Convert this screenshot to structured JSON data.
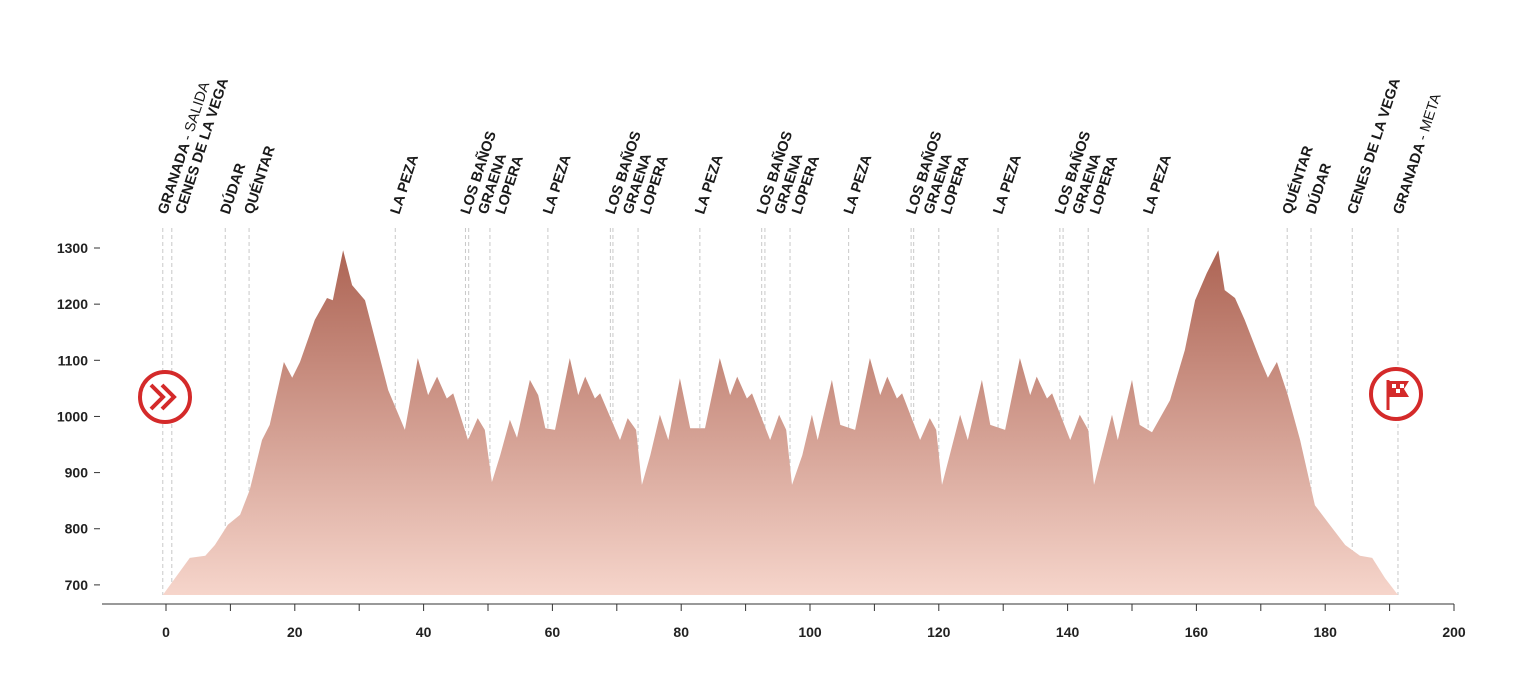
{
  "chart_data": {
    "type": "area",
    "x": [
      -0.5,
      1.4,
      3.7,
      6.1,
      7.6,
      9.6,
      11.5,
      13,
      14.9,
      16.1,
      18.3,
      19.6,
      20.8,
      23.1,
      25,
      25.9,
      27.5,
      28.9,
      30.9,
      34.5,
      37.1,
      39.1,
      40.7,
      42.1,
      43.6,
      44.6,
      46.9,
      48.4,
      49.5,
      50.6,
      51.9,
      53.4,
      54.5,
      56.5,
      57.8,
      58.9,
      60.4,
      62.7,
      64,
      65.1,
      66.6,
      67.4,
      70.5,
      71.7,
      73,
      73.9,
      75.2,
      76.7,
      78,
      79.8,
      81.4,
      83.7,
      86,
      87.6,
      88.7,
      90.2,
      91,
      93.8,
      95.2,
      96.3,
      97.2,
      98.8,
      100.3,
      101.2,
      103.4,
      104.7,
      107,
      109.3,
      110.9,
      112,
      113.5,
      114.3,
      117.1,
      118.6,
      119.6,
      120.5,
      121.7,
      123.3,
      124.5,
      126.7,
      128,
      130.3,
      132.6,
      134.2,
      135.2,
      136.8,
      137.6,
      140.4,
      141.9,
      143.2,
      144.1,
      145.3,
      146.9,
      147.8,
      150,
      151.2,
      153.1,
      155.9,
      158.2,
      159.8,
      161.6,
      163.4,
      164.4,
      166,
      167.5,
      169.9,
      171.1,
      172.5,
      174.2,
      176.1,
      178.4,
      180.7,
      183.1,
      185.4,
      187.3,
      189.3,
      191.3
    ],
    "values": [
      682,
      712,
      748,
      752,
      771,
      807,
      825,
      869,
      958,
      985,
      1097,
      1069,
      1097,
      1172,
      1211,
      1207,
      1296,
      1234,
      1207,
      1047,
      976,
      1104,
      1038,
      1071,
      1032,
      1041,
      958,
      997,
      976,
      883,
      931,
      994,
      962,
      1065,
      1038,
      979,
      976,
      1104,
      1038,
      1071,
      1032,
      1041,
      958,
      997,
      976,
      878,
      931,
      1003,
      958,
      1068,
      979,
      979,
      1104,
      1038,
      1071,
      1032,
      1041,
      958,
      1003,
      976,
      878,
      931,
      1003,
      958,
      1065,
      985,
      976,
      1104,
      1038,
      1071,
      1032,
      1041,
      958,
      997,
      976,
      878,
      931,
      1003,
      958,
      1065,
      985,
      976,
      1104,
      1038,
      1071,
      1032,
      1041,
      958,
      1003,
      976,
      878,
      931,
      1003,
      958,
      1065,
      985,
      972,
      1029,
      1118,
      1207,
      1255,
      1296,
      1225,
      1211,
      1172,
      1101,
      1069,
      1097,
      1038,
      958,
      842,
      807,
      771,
      752,
      748,
      712,
      682
    ],
    "color_top": "#ad6454",
    "color_bottom": "#f6d5cb",
    "xlim": [
      -10,
      200
    ],
    "ylim": [
      682,
      1300
    ],
    "xticks": [
      0,
      20,
      40,
      60,
      80,
      100,
      120,
      140,
      160,
      180,
      200
    ],
    "xminor_ticks": [
      10,
      30,
      50,
      70,
      90,
      110,
      130,
      150,
      170,
      190
    ],
    "yticks": [
      700,
      800,
      900,
      1000,
      1100,
      1200,
      1300
    ],
    "waypoints": [
      {
        "x": -0.5,
        "name": "GRANADA",
        "note": "- SALIDA"
      },
      {
        "x": 0.9,
        "name": "CENES DE LA VEGA"
      },
      {
        "x": 9.2,
        "name": "DÚDAR"
      },
      {
        "x": 12.9,
        "name": "QUÉNTAR"
      },
      {
        "x": 35.6,
        "name": "LA PEZA"
      },
      {
        "x": 46.5,
        "name": "LOS BAÑOS"
      },
      {
        "x": 47,
        "name": "GRAENA"
      },
      {
        "x": 50.3,
        "name": "LOPERA"
      },
      {
        "x": 59.3,
        "name": "LA PEZA"
      },
      {
        "x": 69,
        "name": "LOS BAÑOS"
      },
      {
        "x": 69.4,
        "name": "GRAENA"
      },
      {
        "x": 73.3,
        "name": "LOPERA"
      },
      {
        "x": 82.9,
        "name": "LA PEZA"
      },
      {
        "x": 92.5,
        "name": "LOS BAÑOS"
      },
      {
        "x": 93,
        "name": "GRAENA"
      },
      {
        "x": 96.9,
        "name": "LOPERA"
      },
      {
        "x": 106,
        "name": "LA PEZA"
      },
      {
        "x": 115.7,
        "name": "LOS BAÑOS"
      },
      {
        "x": 116.1,
        "name": "GRAENA"
      },
      {
        "x": 120,
        "name": "LOPERA"
      },
      {
        "x": 129.2,
        "name": "LA PEZA"
      },
      {
        "x": 138.8,
        "name": "LOS BAÑOS"
      },
      {
        "x": 139.3,
        "name": "GRAENA"
      },
      {
        "x": 143.2,
        "name": "LOPERA"
      },
      {
        "x": 152.5,
        "name": "LA PEZA"
      },
      {
        "x": 174.1,
        "name": "QUÉNTAR"
      },
      {
        "x": 177.8,
        "name": "DÚDAR"
      },
      {
        "x": 184.2,
        "name": "CENES DE LA VEGA"
      },
      {
        "x": 191.3,
        "name": "GRANADA",
        "note": "- META"
      }
    ]
  }
}
